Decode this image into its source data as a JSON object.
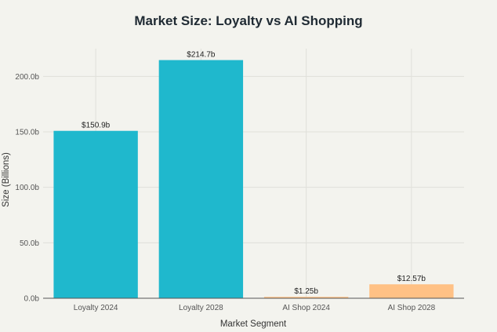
{
  "chart_data": {
    "type": "bar",
    "title": "Market Size: Loyalty vs AI Shopping",
    "xlabel": "Market Segment",
    "ylabel": "Size (Billions)",
    "categories": [
      "Loyalty 2024",
      "Loyalty 2028",
      "AI Shop 2024",
      "AI Shop 2028"
    ],
    "values": [
      150.9,
      214.7,
      1.25,
      12.57
    ],
    "data_labels": [
      "$150.9b",
      "$214.7b",
      "$1.25b",
      "$12.57b"
    ],
    "colors": [
      "#1fb8cd",
      "#1fb8cd",
      "#ffc185",
      "#ffc185"
    ],
    "ylim": [
      0,
      225
    ],
    "yticks": [
      0,
      50,
      100,
      150,
      200
    ],
    "ytick_labels": [
      "0.0b",
      "50.0b",
      "100.0b",
      "150.0b",
      "200.0b"
    ],
    "grid": true,
    "legend": "none"
  }
}
